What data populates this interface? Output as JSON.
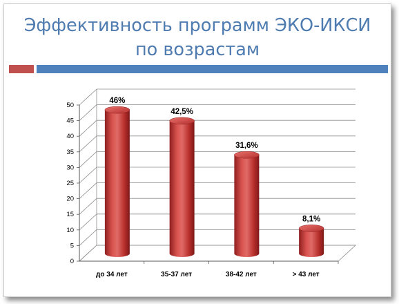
{
  "slide": {
    "title_line1": "Эффективность программ ЭКО-ИКСИ",
    "title_line2": "по возрастам"
  },
  "colors": {
    "title": "#4e7bb0",
    "accent_red": "#c0504d",
    "accent_blue": "#4f81bd",
    "bar_fill": "#c0393a"
  },
  "chart_data": {
    "type": "bar",
    "categories": [
      "до 34 лет",
      "35-37 лет",
      "38-42 лет",
      "> 43 лет"
    ],
    "values": [
      46,
      42.5,
      31.6,
      8.1
    ],
    "data_labels": [
      "46%",
      "42,5%",
      "31,6%",
      "8,1%"
    ],
    "ylim": [
      0,
      50
    ],
    "yticks": [
      0,
      5,
      10,
      15,
      20,
      25,
      30,
      35,
      40,
      45,
      50
    ],
    "grid": true,
    "style": "3d-cylinder"
  }
}
